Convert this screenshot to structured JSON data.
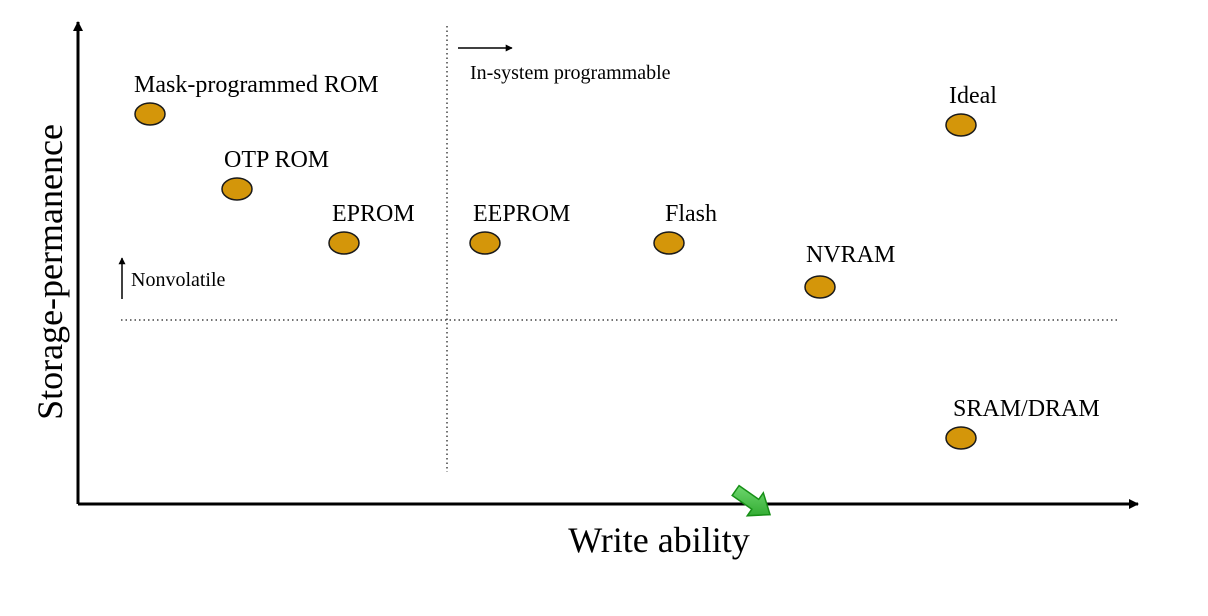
{
  "chart_data": {
    "type": "scatter",
    "xlabel": "Write ability",
    "ylabel": "Storage-permanence",
    "grid": false,
    "points": [
      {
        "label": "Mask-programmed ROM",
        "x": 1,
        "y": 9
      },
      {
        "label": "OTP ROM",
        "x": 2,
        "y": 8
      },
      {
        "label": "EPROM",
        "x": 3,
        "y": 7
      },
      {
        "label": "EEPROM",
        "x": 4,
        "y": 7
      },
      {
        "label": "Flash",
        "x": 5,
        "y": 7
      },
      {
        "label": "NVRAM",
        "x": 6,
        "y": 6
      },
      {
        "label": "Ideal",
        "x": 7,
        "y": 8.8
      },
      {
        "label": "SRAM/DRAM",
        "x": 7,
        "y": 3
      }
    ],
    "annotations": {
      "in_system": "In-system programmable",
      "nonvolatile": "Nonvolatile"
    },
    "colors": {
      "marker_fill": "#d4960a",
      "marker_stroke": "#1a1a1a",
      "pointer_arrow": "#2fb82f"
    },
    "icons": {
      "pointer": "green-pointer-arrow-icon"
    }
  }
}
